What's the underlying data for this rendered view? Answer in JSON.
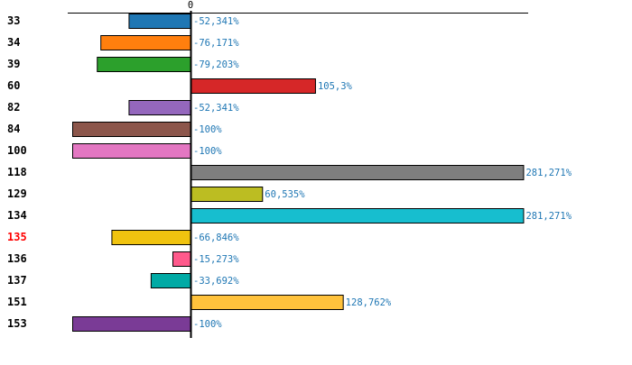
{
  "chart_data": {
    "type": "bar",
    "orientation": "horizontal",
    "title": "",
    "xlabel": "",
    "ylabel": "",
    "xlim": [
      -100,
      281.271
    ],
    "zero_tick_label": "0",
    "highlight_category": "135",
    "highlight_color": "#ff0000",
    "value_label_color": "#1f77b4",
    "categories": [
      "33",
      "34",
      "39",
      "60",
      "82",
      "84",
      "100",
      "118",
      "129",
      "134",
      "135",
      "136",
      "137",
      "151",
      "153"
    ],
    "values": [
      -52.341,
      -76.171,
      -79.203,
      105.3,
      -52.341,
      -100,
      -100,
      281.271,
      60.535,
      281.271,
      -66.846,
      -15.273,
      -33.692,
      128.762,
      -100
    ],
    "value_labels": [
      "-52,341%",
      "-76,171%",
      "-79,203%",
      "105,3%",
      "-52,341%",
      "-100%",
      "-100%",
      "281,271%",
      "60,535%",
      "281,271%",
      "-66,846%",
      "-15,273%",
      "-33,692%",
      "128,762%",
      "-100%"
    ],
    "colors": [
      "#1f77b4",
      "#ff7f0e",
      "#2ca02c",
      "#d62728",
      "#9467bd",
      "#8c564b",
      "#e377c2",
      "#7f7f7f",
      "#bcbd22",
      "#17becf",
      "#f0c30f",
      "#ff5a8c",
      "#00aaa5",
      "#ffc23c",
      "#7a3b96"
    ]
  }
}
